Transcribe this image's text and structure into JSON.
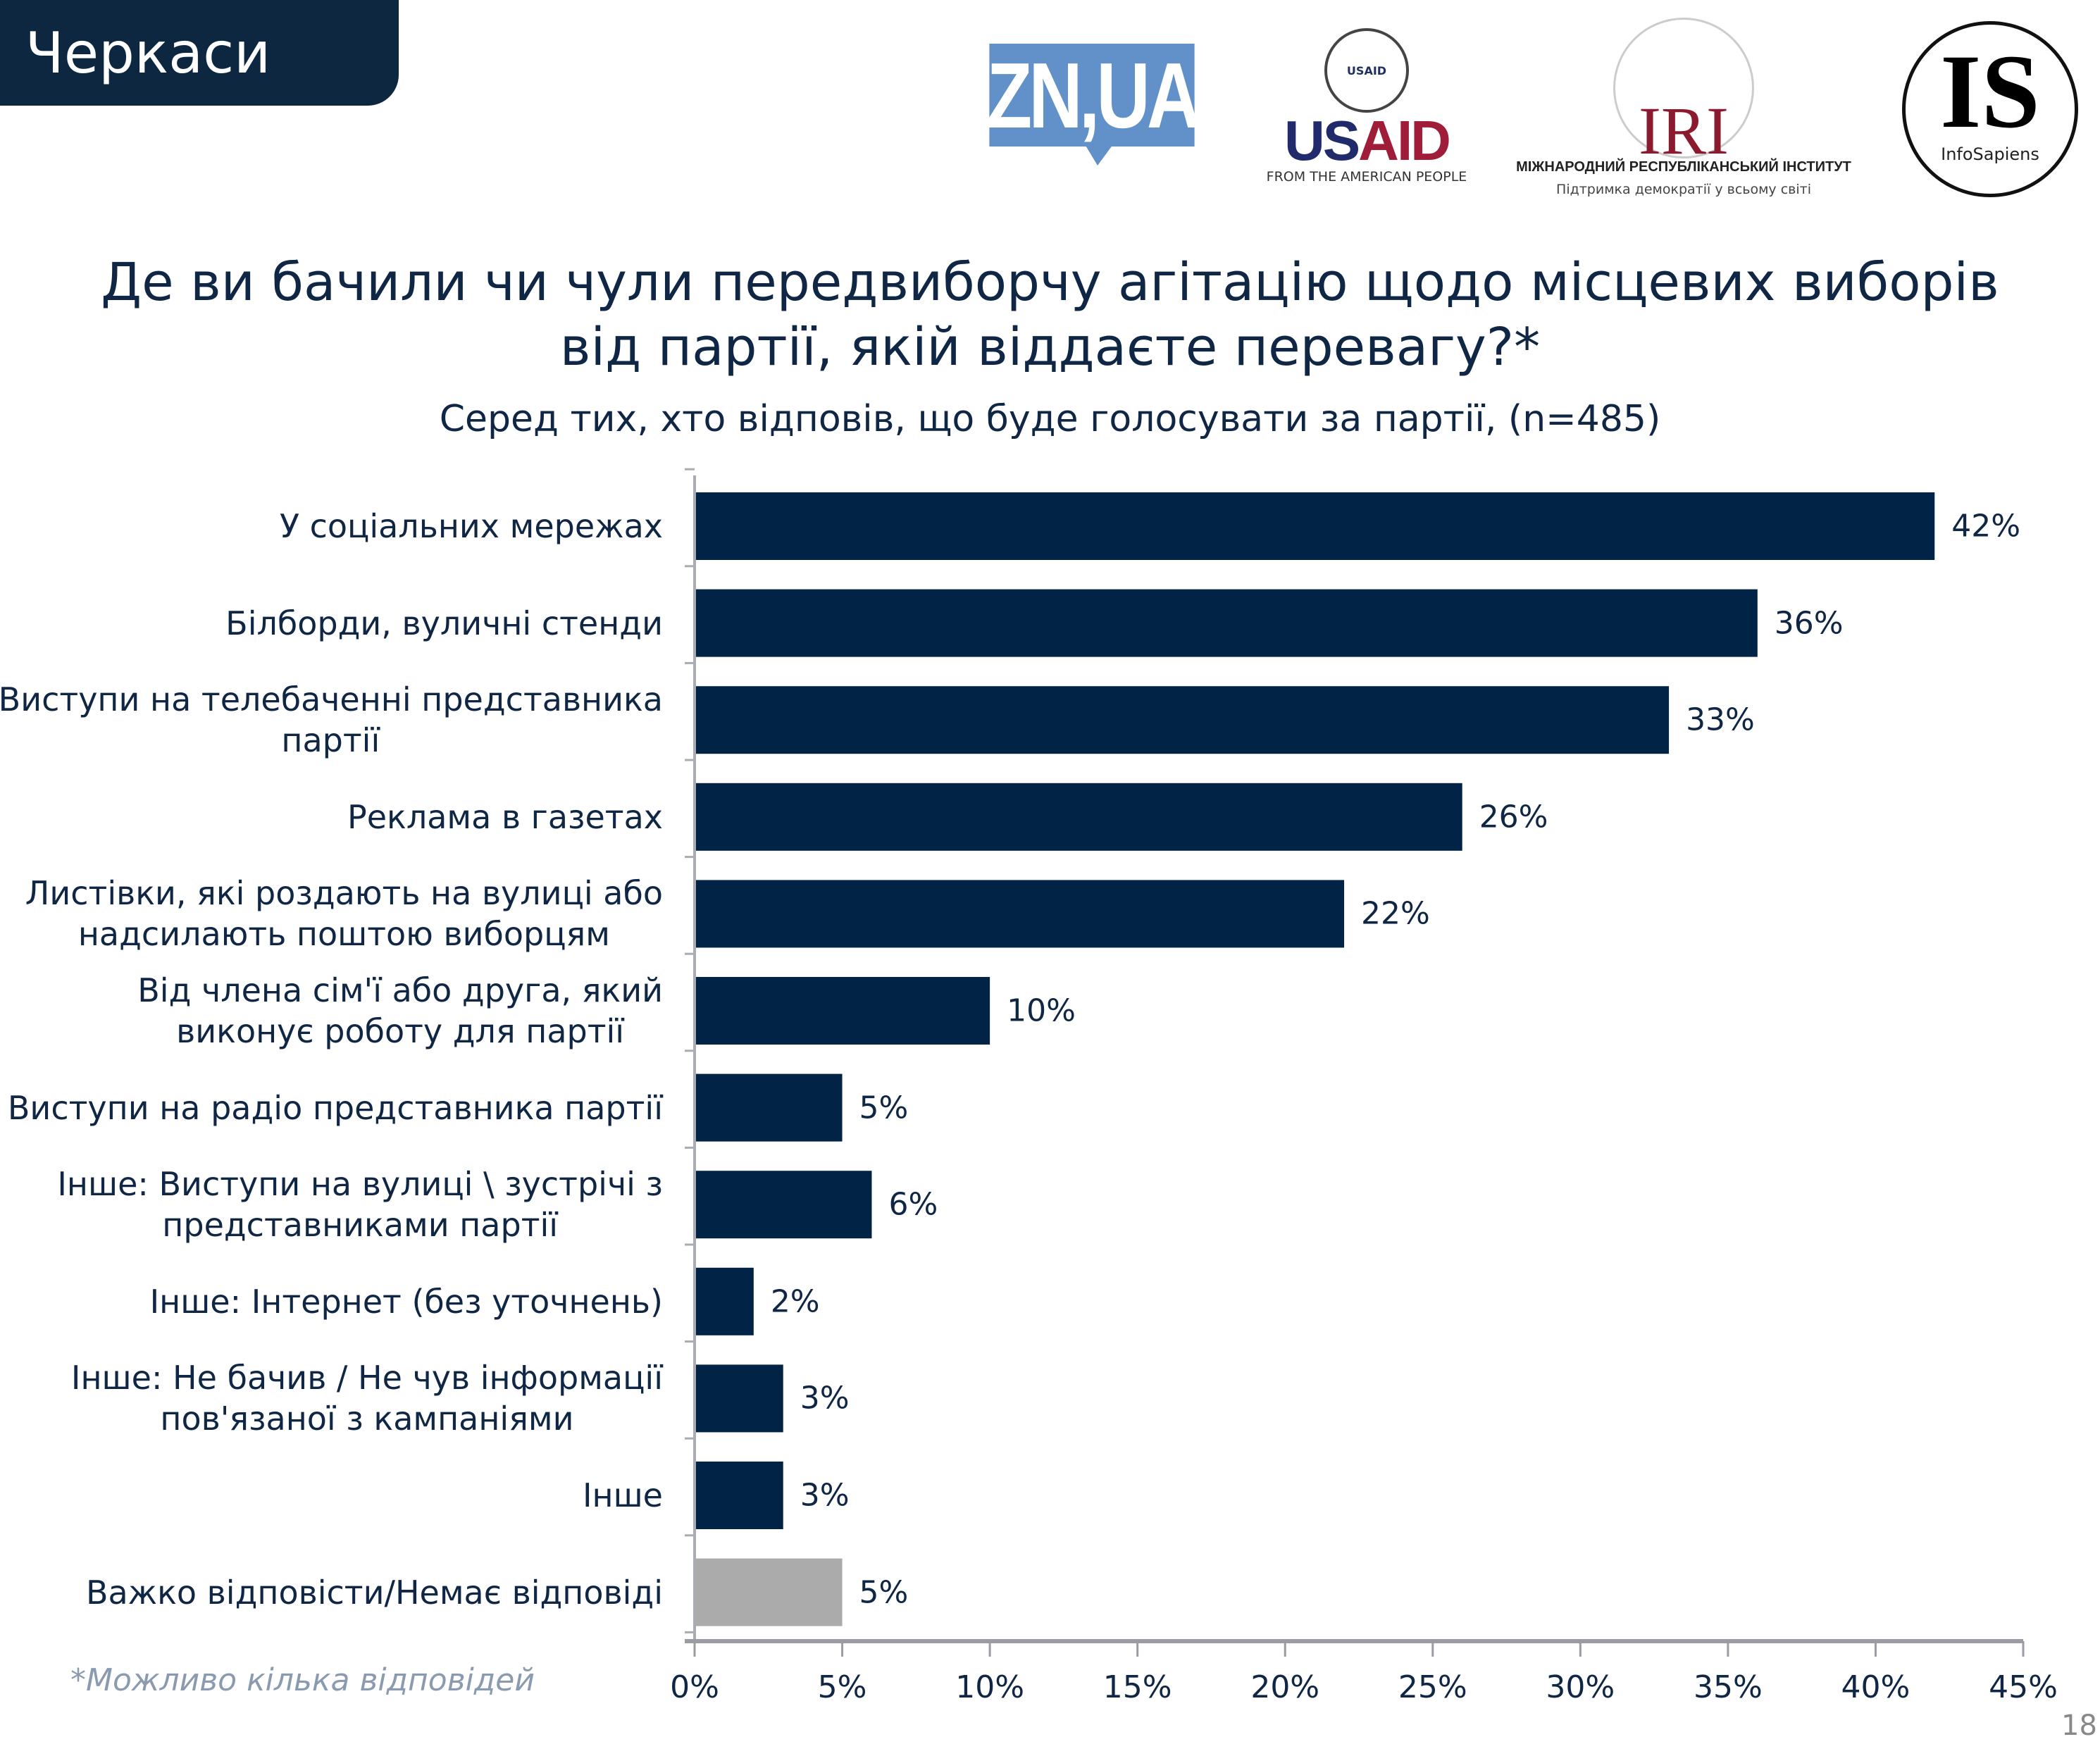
{
  "header": {
    "region": "Черкаси",
    "page_number": "18"
  },
  "logos": {
    "zn": "ZN,UA",
    "usaid": {
      "seal": "USAID",
      "us": "US",
      "aid": "AID",
      "tagline": "FROM THE AMERICAN PEOPLE"
    },
    "iri": {
      "mark": "IRI",
      "name": "МІЖНАРОДНИЙ РЕСПУБЛІКАНСЬКИЙ ІНСТИТУТ",
      "tagline": "Підтримка демократії у всьому світі"
    },
    "infosapiens": {
      "mark": "IS",
      "name": "InfoSapiens"
    }
  },
  "footnote": "*Можливо кілька відповідей",
  "chart_data": {
    "type": "bar",
    "orientation": "horizontal",
    "title": "Де ви бачили чи чули передвиборчу агітацію щодо місцевих виборів від партії, якій віддаєте перевагу?*",
    "title_lines": [
      "Де ви бачили чи чули передвиборчу агітацію щодо місцевих виборів",
      "від партії, якій віддаєте перевагу?*"
    ],
    "subtitle": "Серед тих, хто відповів, що буде голосувати за партії, (n=485)",
    "categories": [
      "У соціальних мережах",
      "Білборди, вуличні стенди",
      "Виступи на телебаченні представника партії",
      "Реклама в газетах",
      "Листівки, які роздають на вулиці або надсилають поштою виборцям",
      "Від члена сім'ї або друга, який виконує роботу для партії",
      "Виступи на радіо представника партії",
      "Інше: Виступи на вулиці \\ зустрічі з представниками партії",
      "Інше: Інтернет (без уточнень)",
      "Інше: Не бачив / Не чув інформації пов'язаної з кампаніями",
      "Інше",
      "Важко відповісти/Немає відповіді"
    ],
    "category_lines": [
      [
        "У соціальних мережах"
      ],
      [
        "Білборди, вуличні стенди"
      ],
      [
        "Виступи на телебаченні представника",
        "партії"
      ],
      [
        "Реклама в газетах"
      ],
      [
        "Листівки, які роздають на вулиці або",
        "надсилають поштою виборцям"
      ],
      [
        "Від члена сім'ї або друга, який",
        "виконує роботу для партії"
      ],
      [
        "Виступи на радіо представника партії"
      ],
      [
        "Інше: Виступи на вулиці \\ зустрічі з",
        "представниками партії"
      ],
      [
        "Інше: Інтернет (без уточнень)"
      ],
      [
        "Інше: Не бачив / Не чув інформації",
        "пов'язаної з кампаніями"
      ],
      [
        "Інше"
      ],
      [
        "Важко відповісти/Немає відповіді"
      ]
    ],
    "values": [
      42,
      36,
      33,
      26,
      22,
      10,
      5,
      6,
      2,
      3,
      3,
      5
    ],
    "value_labels": [
      "42%",
      "36%",
      "33%",
      "26%",
      "22%",
      "10%",
      "5%",
      "6%",
      "2%",
      "3%",
      "3%",
      "5%"
    ],
    "bar_colors": [
      "#012446",
      "#012446",
      "#012446",
      "#012446",
      "#012446",
      "#012446",
      "#012446",
      "#012446",
      "#012446",
      "#012446",
      "#012446",
      "#ababab"
    ],
    "xlim": [
      0,
      45
    ],
    "xticks": [
      "0%",
      "5%",
      "10%",
      "15%",
      "20%",
      "25%",
      "30%",
      "35%",
      "40%",
      "45%"
    ],
    "grid": false
  }
}
